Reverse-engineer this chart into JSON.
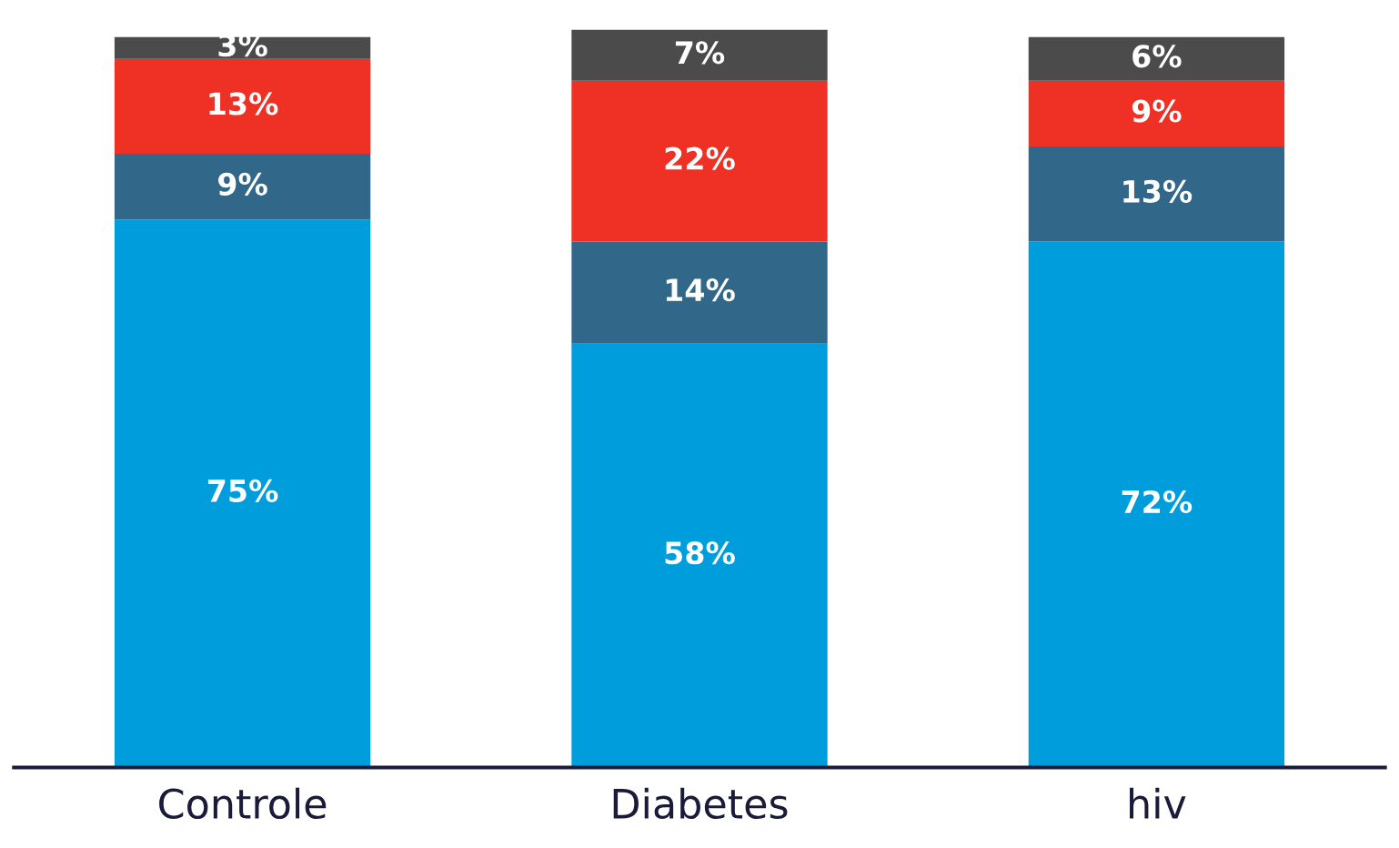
{
  "chart_data": {
    "type": "bar",
    "stacked": true,
    "categories": [
      "Controle",
      "Diabetes",
      "hiv"
    ],
    "series": [
      {
        "color": "#009ddc",
        "values": [
          75,
          58,
          72
        ],
        "value_labels": [
          "75%",
          "58%",
          "72%"
        ]
      },
      {
        "color": "#31688a",
        "values": [
          9,
          14,
          13
        ],
        "value_labels": [
          "9%",
          "14%",
          "13%"
        ]
      },
      {
        "color": "#ee3124",
        "values": [
          13,
          22,
          9
        ],
        "value_labels": [
          "13%",
          "22%",
          "9%"
        ]
      },
      {
        "color": "#4b4b4b",
        "values": [
          3,
          7,
          6
        ],
        "value_labels": [
          "3%",
          "7%",
          "6%"
        ]
      }
    ],
    "grid": false,
    "legend": false
  }
}
